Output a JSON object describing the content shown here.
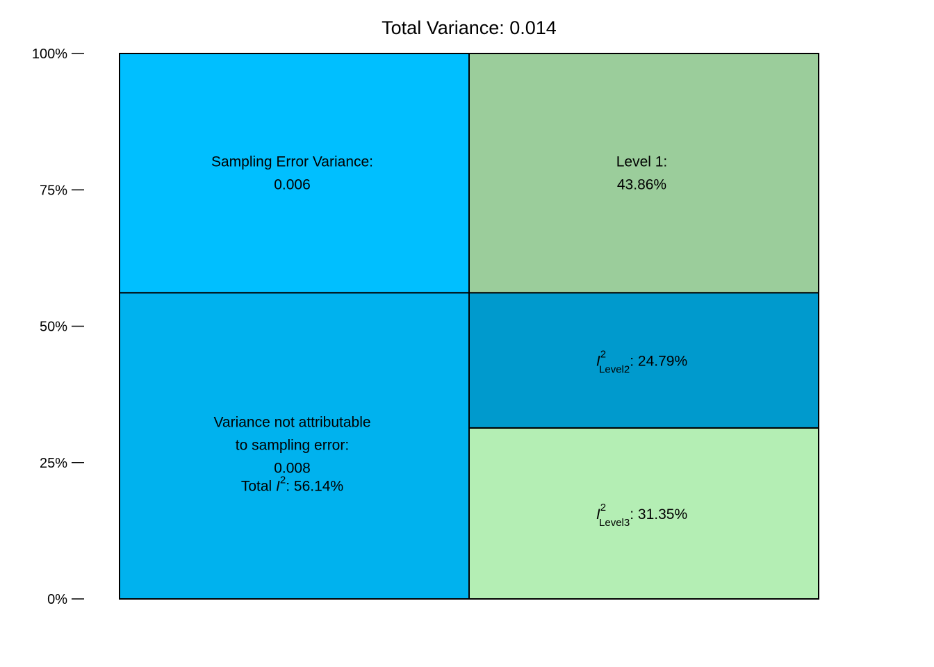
{
  "chart_data": {
    "type": "area",
    "title": "Total Variance: 0.014",
    "ylim": [
      0,
      100
    ],
    "y_ticks": [
      "0%",
      "25%",
      "50%",
      "75%",
      "100%"
    ],
    "y_tick_values": [
      0,
      25,
      50,
      75,
      100
    ],
    "columns": [
      {
        "name": "left",
        "segments": [
          {
            "id": "not-sampling",
            "from": 0,
            "to": 56.14,
            "color": "#00B2EE",
            "lines": [
              "Variance not attributable",
              "to sampling error:",
              "0.008"
            ],
            "i2_prefix": "Total ",
            "i2_symbol": "I",
            "i2_sup": "2",
            "i2_value": ": 56.14%"
          },
          {
            "id": "sampling",
            "from": 56.14,
            "to": 100,
            "color": "#00BFFF",
            "lines": [
              "Sampling Error Variance:",
              "0.006"
            ]
          }
        ]
      },
      {
        "name": "right",
        "segments": [
          {
            "id": "level3",
            "from": 0,
            "to": 31.35,
            "color": "#B4EEB4",
            "i2_symbol": "I",
            "i2_sup": "2",
            "i2_sub": "Level3",
            "i2_value": ": 31.35%"
          },
          {
            "id": "level2",
            "from": 31.35,
            "to": 56.14,
            "color": "#009ACD",
            "i2_symbol": "I",
            "i2_sup": "2",
            "i2_sub": "Level2",
            "i2_value": ": 24.79%"
          },
          {
            "id": "level1",
            "from": 56.14,
            "to": 100,
            "color": "#9BCD9B",
            "lines": [
              "Level 1:",
              "43.86%"
            ]
          }
        ]
      }
    ]
  }
}
